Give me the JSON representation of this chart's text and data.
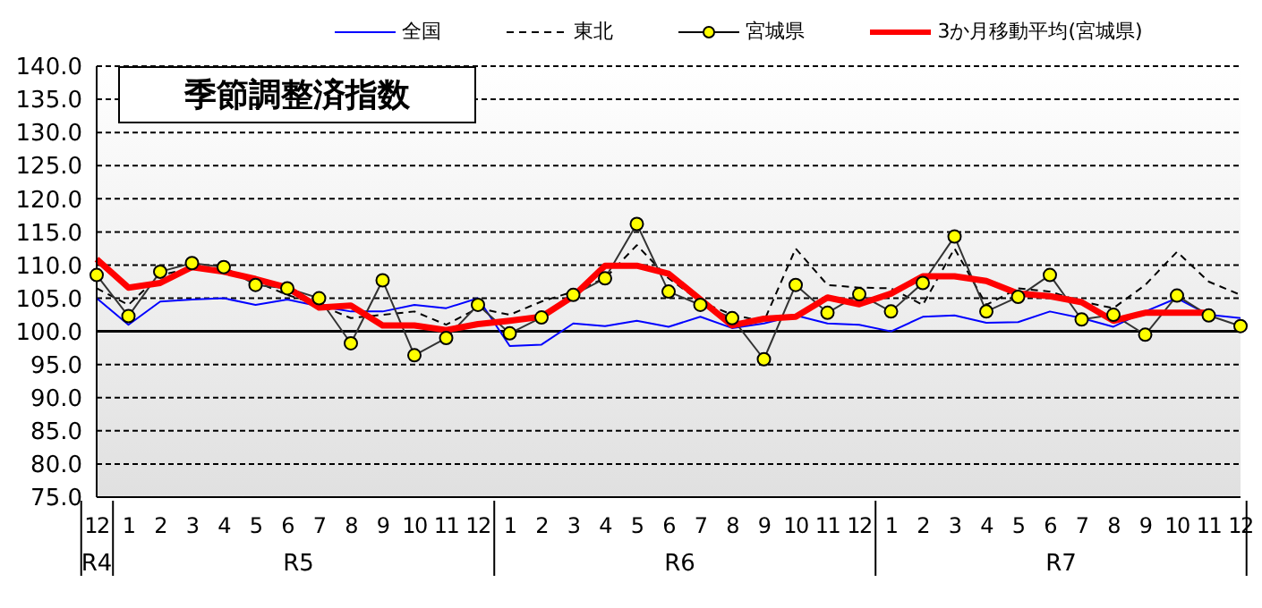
{
  "chart_data": {
    "type": "line",
    "title": "季節調整済指数",
    "categories": [
      "12",
      "1",
      "2",
      "3",
      "4",
      "5",
      "6",
      "7",
      "8",
      "9",
      "10",
      "11",
      "12",
      "1",
      "2",
      "3",
      "4",
      "5",
      "6",
      "7",
      "8",
      "9",
      "10",
      "11",
      "12",
      "1",
      "2",
      "3",
      "4",
      "5",
      "6",
      "7",
      "8",
      "9",
      "10",
      "11",
      "12"
    ],
    "annotations": [
      "R4",
      "R5",
      "R6",
      "R7"
    ],
    "series": [
      {
        "name": "全国",
        "color": "#0000ff",
        "marker": "none",
        "line_style": "solid",
        "values": [
          105,
          101,
          104.5,
          104.8,
          105,
          104,
          104.8,
          103.8,
          103,
          103,
          104,
          103.5,
          105,
          97.8,
          98,
          101.2,
          100.8,
          101.6,
          100.7,
          102.2,
          100.5,
          101.2,
          102.4,
          101.2,
          101,
          100,
          102.2,
          102.4,
          101.3,
          101.4,
          103,
          102,
          100.7,
          103,
          105,
          102.5,
          102
        ]
      },
      {
        "name": "東北",
        "color": "#000000",
        "marker": "none",
        "line_style": "dashed",
        "values": [
          106.5,
          104,
          108.5,
          109.5,
          109.5,
          107.5,
          105.5,
          104,
          102,
          102.5,
          103,
          101,
          103.5,
          102.5,
          104.5,
          106,
          108,
          113,
          108,
          104.5,
          102.5,
          101.5,
          112.5,
          107,
          106.6,
          106.5,
          104,
          112.5,
          104,
          106.5,
          106,
          104.5,
          103.5,
          107,
          112,
          107.5,
          105.5
        ]
      },
      {
        "name": "宮城県",
        "color": "#ffff00",
        "marker": "circle",
        "line_style": "solid",
        "values": [
          108.5,
          102.3,
          109,
          110.3,
          109.7,
          107,
          106.5,
          105,
          98.2,
          107.7,
          96.4,
          99,
          104,
          99.7,
          102.1,
          105.5,
          108,
          116.2,
          106,
          104,
          102,
          95.8,
          107,
          102.8,
          105.6,
          103,
          107.3,
          114.3,
          103,
          105.2,
          108.5,
          101.8,
          102.5,
          99.5,
          105.4,
          102.4,
          100.8
        ]
      },
      {
        "name": "3か月移動平均(宮城県)",
        "color": "#ff0000",
        "marker": "none",
        "line_style": "solid",
        "values": [
          110.9,
          106.6,
          107.3,
          109.7,
          109,
          107.9,
          106.6,
          103.6,
          103.9,
          100.9,
          100.9,
          100.2,
          101.1,
          101.6,
          102.2,
          105.3,
          109.9,
          109.9,
          108.7,
          104.8,
          100.9,
          101.9,
          102.2,
          105.1,
          104.1,
          105.7,
          108.3,
          108.3,
          107.6,
          105.7,
          105.3,
          104.4,
          101.6,
          102.8,
          102.8,
          102.8,
          null
        ]
      }
    ],
    "ylim": [
      75,
      140
    ],
    "yticks": [
      {
        "value": 75,
        "label": "75.0"
      },
      {
        "value": 80,
        "label": "80.0"
      },
      {
        "value": 85,
        "label": "85.0"
      },
      {
        "value": 90,
        "label": "90.0"
      },
      {
        "value": 95,
        "label": "95.0"
      },
      {
        "value": 100,
        "label": "100.0"
      },
      {
        "value": 105,
        "label": "105.0"
      },
      {
        "value": 110,
        "label": "110.0"
      },
      {
        "value": 115,
        "label": "115.0"
      },
      {
        "value": 120,
        "label": "120.0"
      },
      {
        "value": 125,
        "label": "125.0"
      },
      {
        "value": 130,
        "label": "130.0"
      },
      {
        "value": 135,
        "label": "135.0"
      },
      {
        "value": 140,
        "label": "140.0"
      }
    ],
    "ref_lines": [
      {
        "axis": "y",
        "value": 100,
        "label": null,
        "color": "#000000",
        "line_style": "solid"
      }
    ],
    "grid": "y",
    "legend": "top"
  }
}
